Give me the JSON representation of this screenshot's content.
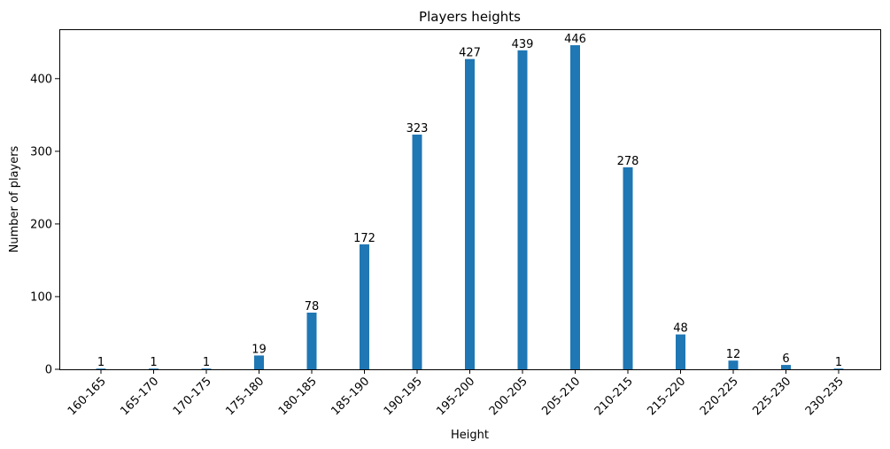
{
  "chart_data": {
    "type": "bar",
    "title": "Players heights",
    "xlabel": "Height",
    "ylabel": "Number of players",
    "categories": [
      "160-165",
      "165-170",
      "170-175",
      "175-180",
      "180-185",
      "185-190",
      "190-195",
      "195-200",
      "200-205",
      "205-210",
      "210-215",
      "215-220",
      "220-225",
      "225-230",
      "230-235"
    ],
    "values": [
      1,
      1,
      1,
      19,
      78,
      172,
      323,
      427,
      439,
      446,
      278,
      48,
      12,
      6,
      1
    ],
    "data_labels": [
      "1",
      "1",
      "1",
      "19",
      "78",
      "172",
      "323",
      "427",
      "439",
      "446",
      "278",
      "48",
      "12",
      "6",
      "1"
    ],
    "ylim": [
      0,
      468
    ],
    "yticks": [
      0,
      100,
      200,
      300,
      400
    ],
    "ytick_labels": [
      "0",
      "100",
      "200",
      "300",
      "400"
    ],
    "xtick_rotation": 45,
    "grid": false,
    "bar_color": "#1f77b4"
  }
}
